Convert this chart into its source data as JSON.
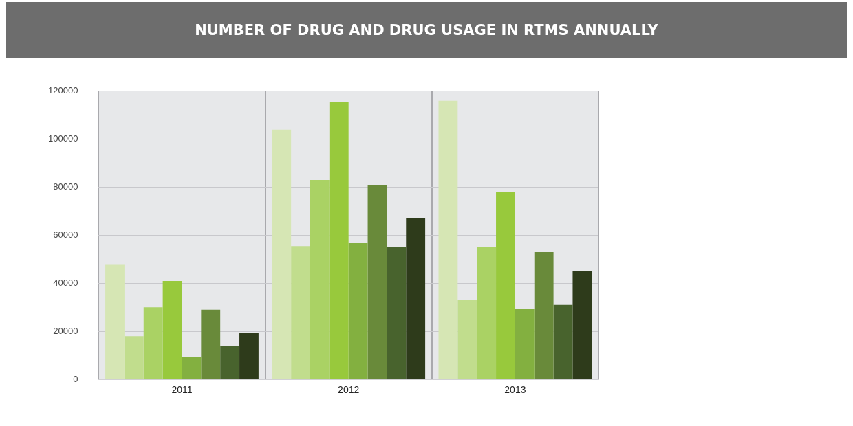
{
  "chart_data": {
    "type": "bar",
    "title": "NUMBER OF DRUG AND DRUG USAGE IN RTMS ANNUALLY",
    "categories": [
      "2011",
      "2012",
      "2013"
    ],
    "series": [
      {
        "color": "#d6e6b4",
        "values": [
          48000,
          104000,
          116000
        ]
      },
      {
        "color": "#c1dd8d",
        "values": [
          18000,
          55500,
          33000
        ]
      },
      {
        "color": "#aad264",
        "values": [
          30000,
          83000,
          55000
        ]
      },
      {
        "color": "#98c93c",
        "values": [
          41000,
          115500,
          78000
        ]
      },
      {
        "color": "#83b040",
        "values": [
          9500,
          57000,
          29500
        ]
      },
      {
        "color": "#698a3a",
        "values": [
          29000,
          81000,
          53000
        ]
      },
      {
        "color": "#48632d",
        "values": [
          14000,
          55000,
          31000
        ]
      },
      {
        "color": "#2e3b1b",
        "values": [
          19500,
          67000,
          45000
        ]
      }
    ],
    "ylim": [
      0,
      120000
    ],
    "yticks": [
      0,
      20000,
      40000,
      60000,
      80000,
      100000,
      120000
    ],
    "grid": true,
    "legend": false
  }
}
